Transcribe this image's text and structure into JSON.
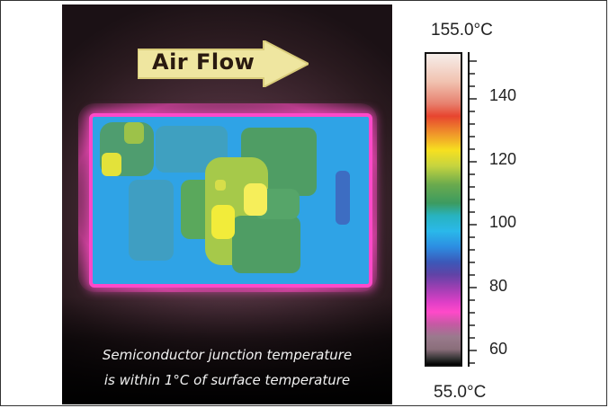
{
  "image": {
    "arrow_label": "Air Flow",
    "caption_line1": "Semiconductor junction temperature",
    "caption_line2": "is within 1°C of surface temperature"
  },
  "scale": {
    "max_label": "155.0°C",
    "min_label": "55.0°C",
    "ticks": [
      "140",
      "120",
      "100",
      "80",
      "60"
    ]
  },
  "colors": {
    "hot": "#f6e020",
    "board": "#2fa3e6",
    "board_edge": "#ff49c9",
    "arrow_fill": "#efe6a0"
  }
}
